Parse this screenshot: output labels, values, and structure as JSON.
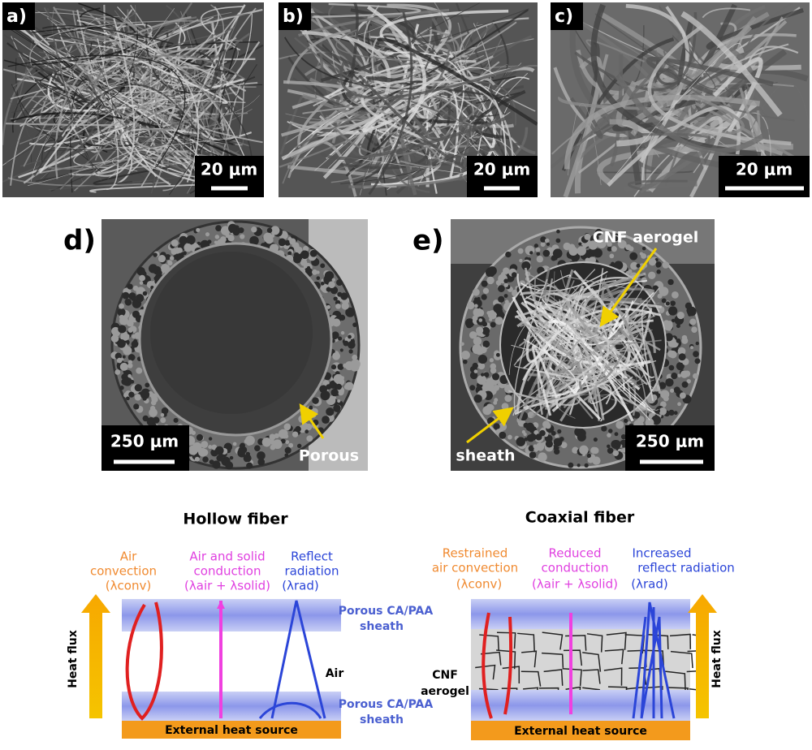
{
  "panels": [
    {
      "label": "a)",
      "scale_bar": "20 μm"
    },
    {
      "label": "b)",
      "scale_bar": "20 μm"
    },
    {
      "label": "c)",
      "scale_bar": "20 μm"
    },
    {
      "label": "d)",
      "scale_bar": "250 μm",
      "annotations": [
        "Porous"
      ]
    },
    {
      "label": "e)",
      "scale_bar": "250 μm",
      "annotations": [
        "CNF aerogel",
        "sheath"
      ]
    }
  ],
  "schematics": [
    {
      "title": "Hollow fiber",
      "mechanisms": [
        [
          "Air",
          "convection",
          "(λconv)"
        ],
        [
          "Air and solid",
          "conduction",
          "(λair + λsolid)"
        ],
        [
          "Reflect",
          "radiation",
          "(λrad)"
        ]
      ],
      "sheath_label": [
        "Porous CA/PAA",
        "sheath"
      ],
      "core_label": "Air",
      "heat_flux": "Heat flux",
      "heat_source": "External heat source"
    },
    {
      "title": "Coaxial fiber",
      "mechanisms": [
        [
          "Restrained",
          "air convection",
          "(λconv)"
        ],
        [
          "Reduced",
          "conduction",
          "(λair + λsolid)"
        ],
        [
          "Increased",
          "reflect radiation",
          "(λrad)"
        ]
      ],
      "core_label": [
        "CNF",
        "aerogel"
      ],
      "heat_flux": "Heat flux",
      "heat_source": "External heat source"
    }
  ]
}
